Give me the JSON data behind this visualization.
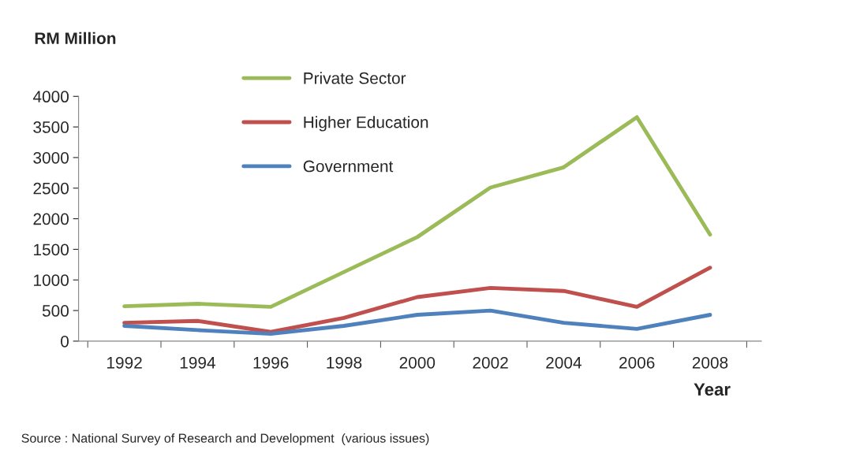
{
  "chart_data": {
    "type": "line",
    "ylabel": "RM Million",
    "xlabel": "Year",
    "categories": [
      "1992",
      "1994",
      "1996",
      "1998",
      "2000",
      "2002",
      "2004",
      "2006",
      "2008"
    ],
    "series": [
      {
        "name": "Private Sector",
        "color": "#9bbb59",
        "values": [
          570,
          610,
          560,
          1130,
          1700,
          2510,
          2840,
          3660,
          1740
        ]
      },
      {
        "name": "Higher Education",
        "color": "#c0504d",
        "values": [
          300,
          330,
          150,
          380,
          720,
          870,
          820,
          560,
          1200
        ]
      },
      {
        "name": "Government",
        "color": "#4f81bd",
        "values": [
          250,
          180,
          120,
          250,
          430,
          500,
          300,
          200,
          430
        ]
      }
    ],
    "ylim": [
      0,
      4000
    ],
    "yticks": [
      0,
      500,
      1000,
      1500,
      2000,
      2500,
      3000,
      3500,
      4000
    ],
    "grid": false,
    "legend": "top",
    "marker": "none",
    "line_style": "solid",
    "annotations": [
      "Source : National Survey of Research and Development  (various issues)"
    ]
  }
}
